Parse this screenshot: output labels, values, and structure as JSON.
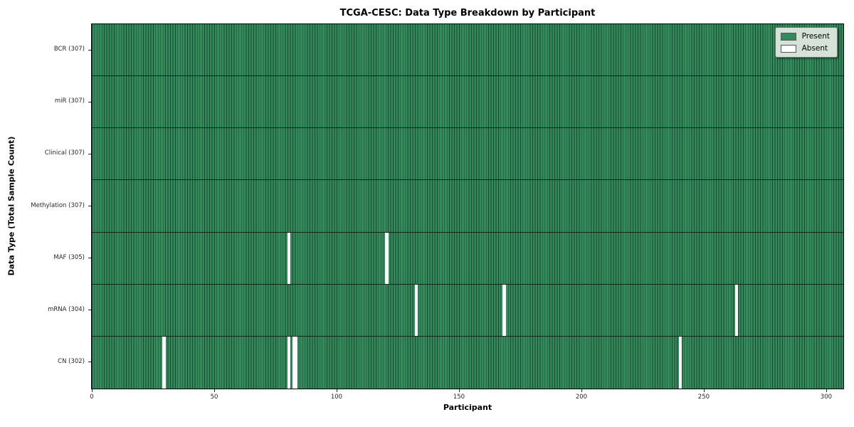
{
  "chart_data": {
    "type": "heatmap",
    "title": "TCGA-CESC: Data Type Breakdown by Participant",
    "xlabel": "Participant",
    "ylabel": "Data Type (Total Sample Count)",
    "n_participants": 307,
    "xlim": [
      0,
      307
    ],
    "x_ticks": [
      0,
      50,
      100,
      150,
      200,
      250,
      300
    ],
    "grid": false,
    "legend_position": "upper right",
    "legend": [
      {
        "label": "Present",
        "color": "#338a5b"
      },
      {
        "label": "Absent",
        "color": "#ffffff"
      }
    ],
    "rows": [
      {
        "label": "BCR (307)",
        "data_type": "BCR",
        "present_count": 307,
        "absent_participants": []
      },
      {
        "label": "miR (307)",
        "data_type": "miR",
        "present_count": 307,
        "absent_participants": []
      },
      {
        "label": "Clinical (307)",
        "data_type": "Clinical",
        "present_count": 307,
        "absent_participants": []
      },
      {
        "label": "Methylation (307)",
        "data_type": "Methylation",
        "present_count": 307,
        "absent_participants": []
      },
      {
        "label": "MAF (305)",
        "data_type": "MAF",
        "present_count": 305,
        "absent_participants": [
          80,
          120
        ]
      },
      {
        "label": "mRNA (304)",
        "data_type": "mRNA",
        "present_count": 304,
        "absent_participants": [
          132,
          168,
          263
        ]
      },
      {
        "label": "CN (302)",
        "data_type": "CN",
        "present_count": 302,
        "absent_participants": [
          29,
          80,
          82,
          83,
          240
        ]
      }
    ],
    "colors": {
      "present": "#338a5b",
      "present_edge": "#1d4631",
      "absent": "#ffffff",
      "row_divider": "#12271a",
      "plot_border": "#000000",
      "tick_text": "#262626",
      "legend_bg": "#e4ecE2"
    }
  }
}
